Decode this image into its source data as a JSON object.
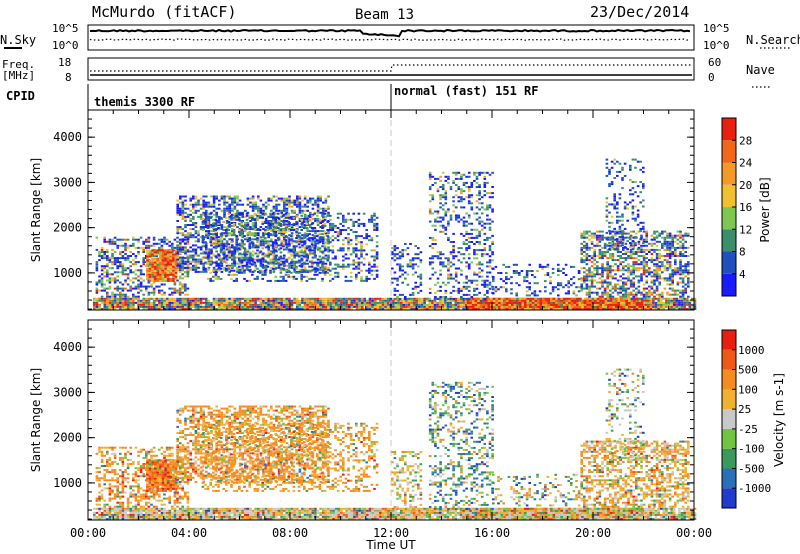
{
  "header": {
    "station": "McMurdo (fitACF)",
    "beam": "Beam 13",
    "date": "23/Dec/2014"
  },
  "noise_panel": {
    "left_label": "N.Sky",
    "right_label": "N.Search",
    "left_ticks": [
      "10^5",
      "10^0"
    ],
    "right_ticks": [
      "10^5",
      "10^0"
    ]
  },
  "freq_panel": {
    "left_label_1": "Freq.",
    "left_label_2": "[MHz]",
    "right_label": "Nave",
    "left_ticks": [
      "18",
      "8"
    ],
    "right_ticks": [
      "60",
      "0"
    ]
  },
  "cpid": {
    "label": "CPID",
    "mode_1": "themis 3300 RF",
    "mode_2": "normal (fast) 151 RF"
  },
  "chart_data": [
    {
      "type": "heatmap",
      "panel": "power",
      "ylabel": "Slant Range [km]",
      "ylim": [
        180,
        4600
      ],
      "y_ticks": [
        "1000",
        "2000",
        "3000",
        "4000"
      ],
      "colorbar_label": "Power [dB]",
      "colorbar_ticks": [
        "4",
        "8",
        "12",
        "16",
        "20",
        "24",
        "28"
      ],
      "colorbar_colors": [
        "#1a1aff",
        "#2050c0",
        "#3a8e6a",
        "#7ec852",
        "#f0c030",
        "#f59a28",
        "#f06818",
        "#e82010"
      ],
      "x_ticks": [
        "00:00",
        "04:00",
        "08:00",
        "12:00",
        "16:00",
        "20:00",
        "00:00"
      ],
      "x_hours": [
        0,
        4,
        8,
        12,
        16,
        20,
        24
      ]
    },
    {
      "type": "heatmap",
      "panel": "velocity",
      "ylabel": "Slant Range [km]",
      "ylim": [
        180,
        4600
      ],
      "y_ticks": [
        "1000",
        "2000",
        "3000",
        "4000"
      ],
      "colorbar_label": "Velocity [m s-1]",
      "colorbar_ticks": [
        "1000",
        "500",
        "100",
        "25",
        "-25",
        "-100",
        "-500",
        "-1000"
      ],
      "colorbar_colors": [
        "#1f3ccc",
        "#2a70b8",
        "#3a9a5c",
        "#70c440",
        "#c8c8c8",
        "#f0b030",
        "#f58c20",
        "#f05818",
        "#e81e10"
      ],
      "x_ticks": [
        "00:00",
        "04:00",
        "08:00",
        "12:00",
        "16:00",
        "20:00",
        "00:00"
      ],
      "x_hours": [
        0,
        4,
        8,
        12,
        16,
        20,
        24
      ],
      "xlabel": "Time UT"
    }
  ]
}
